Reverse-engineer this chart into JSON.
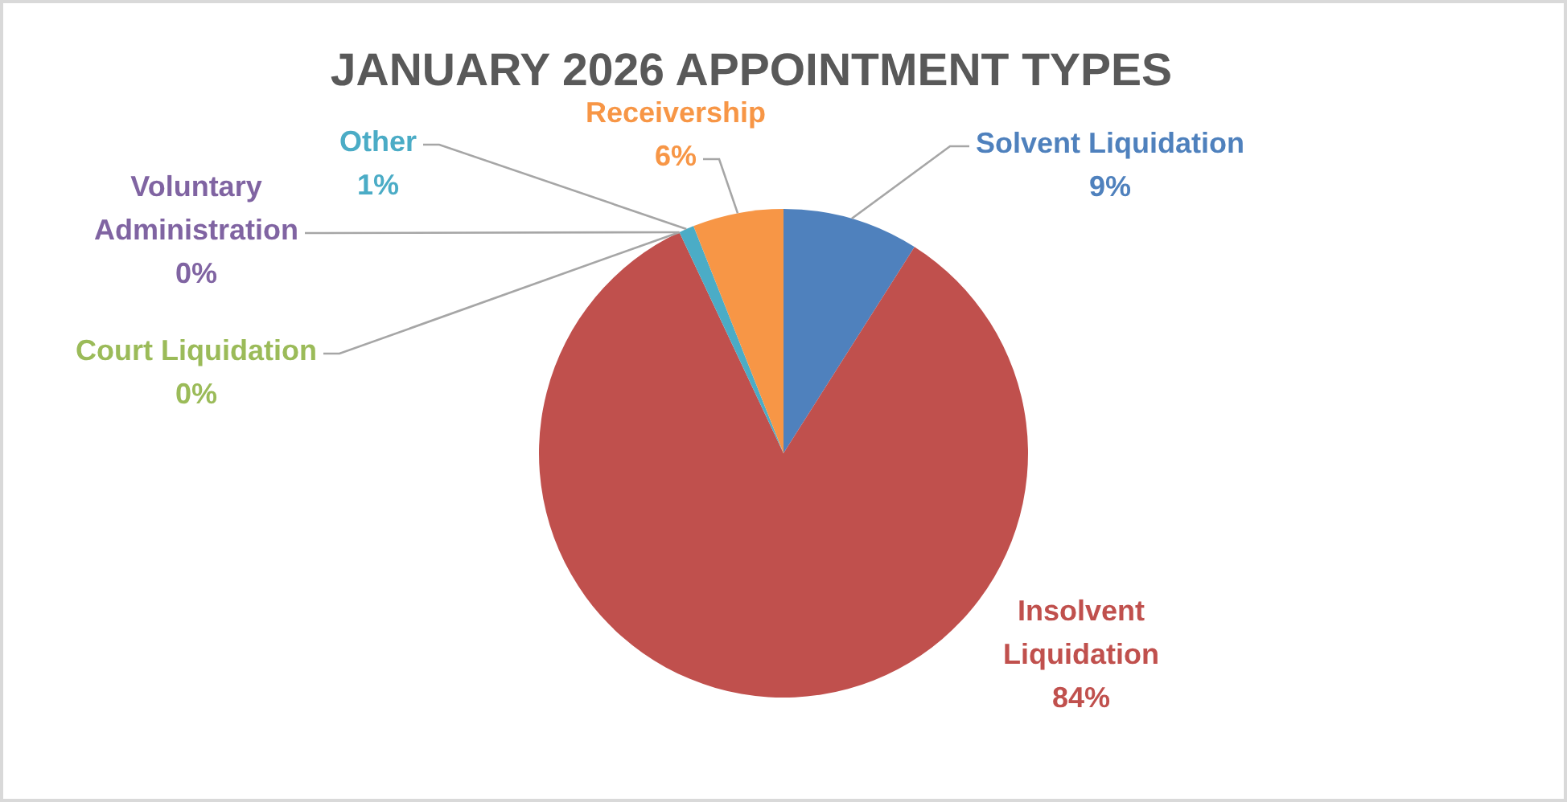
{
  "chart_data": {
    "type": "pie",
    "title": "JANUARY 2026 APPOINTMENT TYPES",
    "categories": [
      "Solvent Liquidation",
      "Insolvent Liquidation",
      "Court Liquidation",
      "Voluntary Administration",
      "Other",
      "Receivership"
    ],
    "values": [
      9,
      84,
      0,
      0,
      1,
      6
    ],
    "value_labels": [
      "9%",
      "84%",
      "0%",
      "0%",
      "1%",
      "6%"
    ],
    "colors": [
      "#4f81bd",
      "#c0504d",
      "#9bbb59",
      "#8064a2",
      "#4bacc6",
      "#f79646"
    ]
  }
}
